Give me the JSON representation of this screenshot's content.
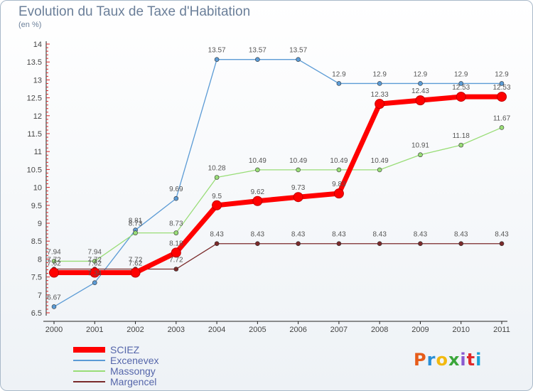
{
  "page": {
    "title": "Evolution du Taux de Taxe d'Habitation",
    "subtitle": "(en %)"
  },
  "logo": {
    "text": "Proxiti",
    "colors": [
      "#e65c1a",
      "#2a8fd6",
      "#f2b90f",
      "#3aa63a",
      "#8a5ad0",
      "#e02a2a",
      "#1aa3d6"
    ]
  },
  "chart_data": {
    "type": "line",
    "title": "Evolution du Taux de Taxe d'Habitation",
    "ylabel": "(en %)",
    "xlabel": "",
    "x": [
      "2000",
      "2001",
      "2002",
      "2003",
      "2004",
      "2005",
      "2006",
      "2007",
      "2008",
      "2009",
      "2010",
      "2011"
    ],
    "ylim": [
      6.5,
      14
    ],
    "yticks": [
      "6.5",
      "7",
      "7.5",
      "8",
      "8.5",
      "9",
      "9.5",
      "10",
      "10.5",
      "11",
      "11.5",
      "12",
      "12.5",
      "13",
      "13.5",
      "14"
    ],
    "grid": false,
    "legend": "bottom-left",
    "series": [
      {
        "name": "SCIEZ",
        "color": "#ff0000",
        "values": [
          7.62,
          7.62,
          7.62,
          8.18,
          9.5,
          9.62,
          9.73,
          9.83,
          12.33,
          12.43,
          12.53,
          12.53
        ],
        "labels": [
          "7.62",
          "7.62",
          "7.62",
          "8.18",
          "9.5",
          "9.62",
          "9.73",
          "9.83",
          "12.33",
          "12.43",
          "12.53",
          "12.53"
        ]
      },
      {
        "name": "Excenevex",
        "color": "#5b9bd5",
        "values": [
          6.67,
          7.34,
          8.81,
          9.69,
          13.57,
          13.57,
          13.57,
          12.9,
          12.9,
          12.9,
          12.9,
          12.9
        ],
        "labels": [
          "6.67",
          "7.34",
          "8.81",
          "9.69",
          "13.57",
          "13.57",
          "13.57",
          "12.9",
          "12.9",
          "12.9",
          "12.9",
          "12.9"
        ]
      },
      {
        "name": "Massongy",
        "color": "#99dd77",
        "values": [
          7.94,
          7.94,
          8.73,
          8.73,
          10.28,
          10.49,
          10.49,
          10.49,
          10.49,
          10.91,
          11.18,
          11.67
        ],
        "labels": [
          "7.94",
          "7.94",
          "8.73",
          "8.73",
          "10.28",
          "10.49",
          "10.49",
          "10.49",
          "10.49",
          "10.91",
          "11.18",
          "11.67"
        ]
      },
      {
        "name": "Margencel",
        "color": "#7a2a2a",
        "values": [
          7.72,
          7.72,
          7.72,
          7.72,
          8.43,
          8.43,
          8.43,
          8.43,
          8.43,
          8.43,
          8.43,
          8.43
        ],
        "labels": [
          "7.72",
          "7.72",
          "7.72",
          "7.72",
          "8.43",
          "8.43",
          "8.43",
          "8.43",
          "8.43",
          "8.43",
          "8.43",
          "8.43"
        ]
      }
    ]
  }
}
